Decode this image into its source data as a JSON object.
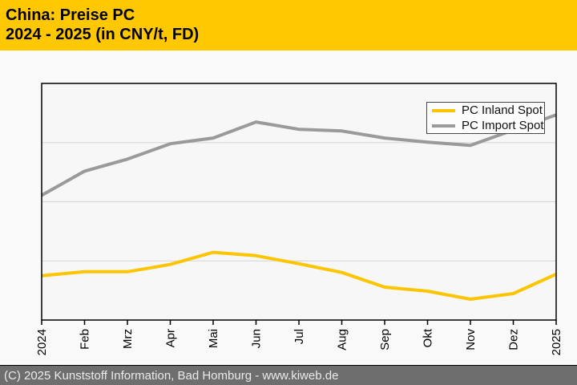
{
  "header": {
    "title_line1": "China: Preise PC",
    "title_line2": "2024 - 2025 (in CNY/t, FD)",
    "bg_color": "#ffc800",
    "text_color": "#000000"
  },
  "footer": {
    "text": "(C) 2025 Kunststoff Information, Bad Homburg - www.kiweb.de",
    "bg_color": "#6e6e6e",
    "text_color": "#ebebeb"
  },
  "chart_data": {
    "type": "line",
    "title": "China: Preise PC",
    "subtitle": "2024 - 2025 (in CNY/t, FD)",
    "unit": "CNY/t",
    "x_tick_labels": [
      "2024",
      "Feb",
      "Mrz",
      "Apr",
      "Mai",
      "Jun",
      "Jul",
      "Aug",
      "Sep",
      "Okt",
      "Nov",
      "Dez",
      "2025"
    ],
    "y_axis_note": "no y-axis tick labels shown in source; series values given as percent of plot height (0 = bottom axis, 100 = top border)",
    "gridlines_pct": [
      25,
      50,
      75
    ],
    "grid_on": true,
    "legend_position": "middle-right",
    "series": [
      {
        "name": "PC Inland Spot",
        "color": "#fdc500",
        "values_pct": [
          18.7,
          20.4,
          20.4,
          23.5,
          28.6,
          27.2,
          23.8,
          20.1,
          13.9,
          12.2,
          8.8,
          11.2,
          19.4
        ]
      },
      {
        "name": "PC Import Spot",
        "color": "#9a9a9a",
        "values_pct": [
          52.7,
          62.9,
          68.0,
          74.5,
          76.9,
          83.7,
          80.6,
          79.9,
          76.9,
          75.2,
          73.8,
          80.3,
          86.7
        ]
      }
    ],
    "colors": {
      "plot_bg": "#f7f7f7",
      "page_bg": "#f9f9f9",
      "gridline": "#d8d8d8",
      "axis": "#000000"
    }
  }
}
